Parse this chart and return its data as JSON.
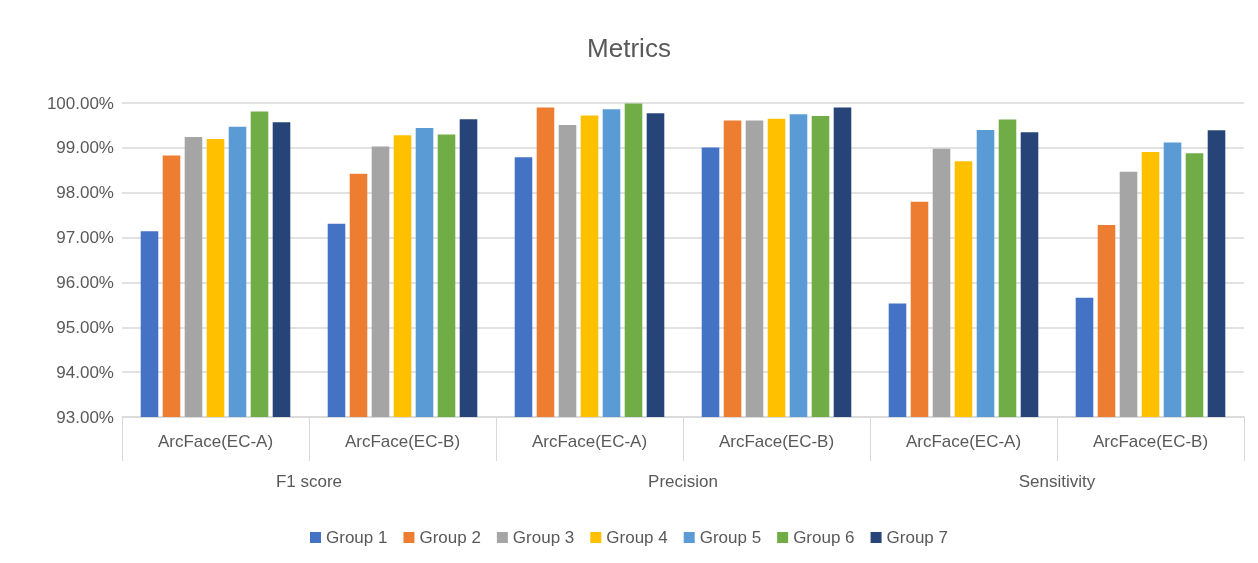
{
  "chart_data": {
    "type": "bar",
    "title": "Metrics",
    "categories": [
      "ArcFace(EC-A)",
      "ArcFace(EC-B)",
      "ArcFace(EC-A)",
      "ArcFace(EC-B)",
      "ArcFace(EC-A)",
      "ArcFace(EC-B)"
    ],
    "annotations": [
      "F1 score",
      "Precision",
      "Sensitivity"
    ],
    "series": [
      {
        "name": "Group 1",
        "color": "#4472c4",
        "values": [
          97.14,
          97.31,
          98.79,
          99.01,
          95.53,
          95.66
        ]
      },
      {
        "name": "Group 2",
        "color": "#ed7d31",
        "values": [
          98.83,
          98.42,
          99.9,
          99.61,
          97.8,
          97.28
        ]
      },
      {
        "name": "Group 3",
        "color": "#a5a5a5",
        "values": [
          99.24,
          99.03,
          99.51,
          99.61,
          98.98,
          98.47
        ]
      },
      {
        "name": "Group 4",
        "color": "#ffc000",
        "values": [
          99.2,
          99.28,
          99.72,
          99.65,
          98.7,
          98.91
        ]
      },
      {
        "name": "Group 5",
        "color": "#5b9bd5",
        "values": [
          99.47,
          99.44,
          99.86,
          99.75,
          99.4,
          99.12
        ]
      },
      {
        "name": "Group 6",
        "color": "#70ad47",
        "values": [
          99.81,
          99.3,
          99.99,
          99.71,
          99.63,
          98.88
        ]
      },
      {
        "name": "Group 7",
        "color": "#264478",
        "values": [
          99.57,
          99.64,
          99.77,
          99.9,
          99.35,
          99.39
        ]
      }
    ],
    "ylim": [
      93,
      100
    ],
    "yticks": [
      {
        "value": 93,
        "label": "93.00%"
      },
      {
        "value": 94,
        "label": "94.00%"
      },
      {
        "value": 95,
        "label": "95.00%"
      },
      {
        "value": 96,
        "label": "96.00%"
      },
      {
        "value": 97,
        "label": "97.00%"
      },
      {
        "value": 98,
        "label": "98.00%"
      },
      {
        "value": 99,
        "label": "99.00%"
      },
      {
        "value": 100,
        "label": "100.00%"
      }
    ],
    "grid": "y",
    "legend": "bottom"
  }
}
